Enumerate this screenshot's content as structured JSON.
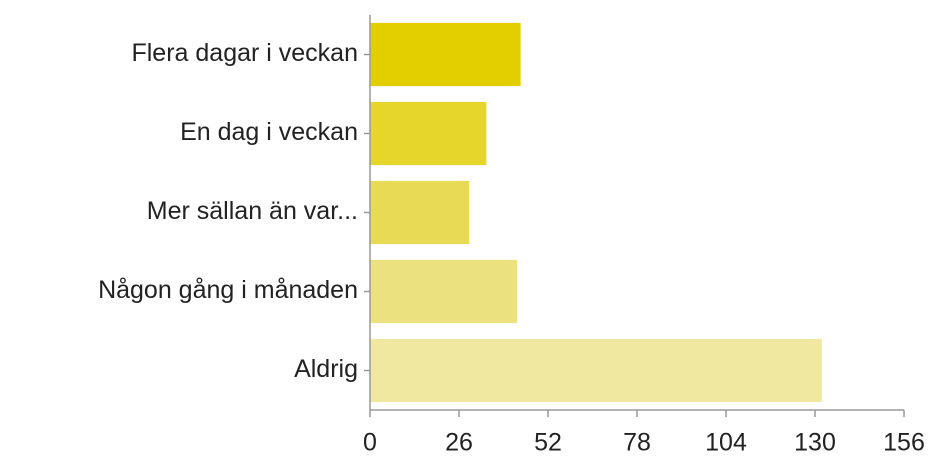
{
  "chart_data": {
    "type": "bar",
    "orientation": "horizontal",
    "categories": [
      "Flera dagar i veckan",
      "En dag i veckan",
      "Mer sällan än var...",
      "Någon gång i månaden",
      "Aldrig"
    ],
    "values": [
      44,
      34,
      29,
      43,
      132
    ],
    "colors": [
      "#e3cf00",
      "#e6d52b",
      "#e9da56",
      "#ece17f",
      "#f0e7a1"
    ],
    "xlim": [
      0,
      156
    ],
    "xticks": [
      0,
      26,
      52,
      78,
      104,
      130,
      156
    ],
    "grid": false
  }
}
